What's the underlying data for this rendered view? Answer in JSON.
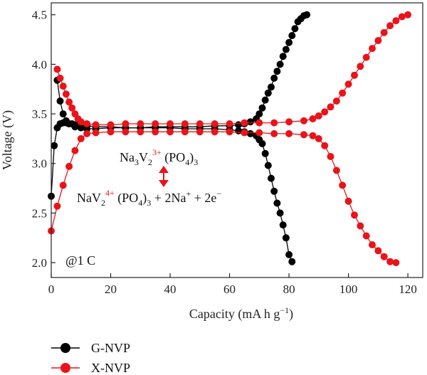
{
  "chart_data": {
    "type": "line",
    "xlabel_main": "Capacity (mA h g",
    "xlabel_sup": "−1",
    "xlabel_end": ")",
    "ylabel": "Voltage (V)",
    "xlim": [
      0,
      125
    ],
    "ylim": [
      1.85,
      4.62
    ],
    "x_ticks": [
      0,
      20,
      40,
      60,
      80,
      100,
      120
    ],
    "x_tick_labels": [
      "0",
      "20",
      "40",
      "60",
      "80",
      "100",
      "120"
    ],
    "y_ticks": [
      2.0,
      2.5,
      3.0,
      3.5,
      4.0,
      4.5
    ],
    "y_tick_labels": [
      "2.0",
      "2.5",
      "3.0",
      "3.5",
      "4.0",
      "4.5"
    ],
    "grid": false,
    "legend_position": "bottom-left",
    "annotations": {
      "rate": "@1 C",
      "eq_top": {
        "a": "Na",
        "a_sub": "3",
        "b": "V",
        "b_sub": "2",
        "b_sup": "3+",
        "c": " (PO",
        "c_sub": "4",
        "d": ")",
        "d_sub": "3"
      },
      "eq_bottom": {
        "a": "NaV",
        "a_sub": "2",
        "a_sup": "4+",
        "b": " (PO",
        "b_sub": "4",
        "c": ")",
        "c_sub": "3",
        "d": " + 2Na",
        "d_sup": "+",
        "e": " + 2e",
        "e_sup": "−"
      }
    },
    "series": [
      {
        "name": "G-NVP",
        "color": "#000000",
        "curves": [
          {
            "x": [
              0,
              1,
              2,
              3,
              4,
              5,
              6,
              7,
              8,
              9,
              10,
              12,
              15,
              20,
              25,
              30,
              35,
              40,
              45,
              50,
              55,
              60,
              63,
              65,
              67,
              69,
              70,
              71,
              72,
              73,
              74,
              75,
              76,
              77,
              78,
              79,
              80,
              81
            ],
            "y": [
              2.67,
              3.18,
              3.36,
              3.4,
              3.41,
              3.41,
              3.4,
              3.4,
              3.39,
              3.39,
              3.38,
              3.38,
              3.37,
              3.37,
              3.36,
              3.36,
              3.36,
              3.36,
              3.35,
              3.35,
              3.35,
              3.34,
              3.33,
              3.32,
              3.3,
              3.28,
              3.24,
              3.2,
              3.1,
              2.98,
              2.85,
              2.72,
              2.6,
              2.5,
              2.38,
              2.25,
              2.08,
              2.01
            ]
          },
          {
            "x": [
              2,
              3,
              4,
              5,
              6,
              8,
              10,
              12,
              15,
              20,
              25,
              30,
              35,
              40,
              45,
              50,
              55,
              60,
              63,
              65,
              67,
              69,
              70,
              71,
              72,
              73,
              74,
              75,
              76,
              77,
              78,
              79,
              80,
              81,
              82,
              83,
              84,
              85,
              86
            ],
            "y": [
              3.84,
              3.63,
              3.5,
              3.43,
              3.4,
              3.37,
              3.36,
              3.35,
              3.35,
              3.36,
              3.36,
              3.36,
              3.37,
              3.37,
              3.37,
              3.37,
              3.38,
              3.38,
              3.39,
              3.4,
              3.42,
              3.45,
              3.5,
              3.56,
              3.64,
              3.71,
              3.77,
              3.86,
              3.93,
              4.0,
              4.08,
              4.15,
              4.22,
              4.29,
              4.36,
              4.43,
              4.46,
              4.49,
              4.5
            ]
          }
        ]
      },
      {
        "name": "X-NVP",
        "color": "#e8141a",
        "curves": [
          {
            "x": [
              0,
              2,
              4,
              6,
              8,
              10,
              12,
              15,
              20,
              25,
              30,
              35,
              40,
              45,
              50,
              55,
              60,
              65,
              70,
              75,
              80,
              85,
              88,
              90,
              92,
              94,
              96,
              98,
              100,
              102,
              104,
              106,
              108,
              110,
              112,
              114,
              116
            ],
            "y": [
              2.32,
              2.57,
              2.78,
              2.97,
              3.13,
              3.25,
              3.3,
              3.31,
              3.32,
              3.32,
              3.32,
              3.32,
              3.32,
              3.32,
              3.32,
              3.32,
              3.32,
              3.31,
              3.31,
              3.3,
              3.3,
              3.29,
              3.28,
              3.25,
              3.18,
              3.07,
              2.93,
              2.78,
              2.62,
              2.48,
              2.37,
              2.27,
              2.18,
              2.12,
              2.06,
              2.01,
              2.0
            ]
          },
          {
            "x": [
              2,
              3,
              4,
              5,
              6,
              7,
              8,
              9,
              10,
              12,
              15,
              20,
              25,
              30,
              35,
              40,
              45,
              50,
              55,
              60,
              65,
              70,
              75,
              80,
              85,
              88,
              90,
              92,
              94,
              96,
              98,
              100,
              102,
              104,
              106,
              108,
              110,
              112,
              114,
              116,
              118,
              120
            ],
            "y": [
              3.95,
              3.86,
              3.78,
              3.7,
              3.62,
              3.56,
              3.5,
              3.45,
              3.42,
              3.4,
              3.39,
              3.39,
              3.4,
              3.4,
              3.4,
              3.4,
              3.4,
              3.4,
              3.4,
              3.4,
              3.41,
              3.41,
              3.41,
              3.42,
              3.43,
              3.45,
              3.48,
              3.52,
              3.57,
              3.63,
              3.71,
              3.8,
              3.89,
              3.98,
              4.07,
              4.16,
              4.24,
              4.32,
              4.39,
              4.44,
              4.48,
              4.5
            ]
          }
        ]
      }
    ]
  }
}
